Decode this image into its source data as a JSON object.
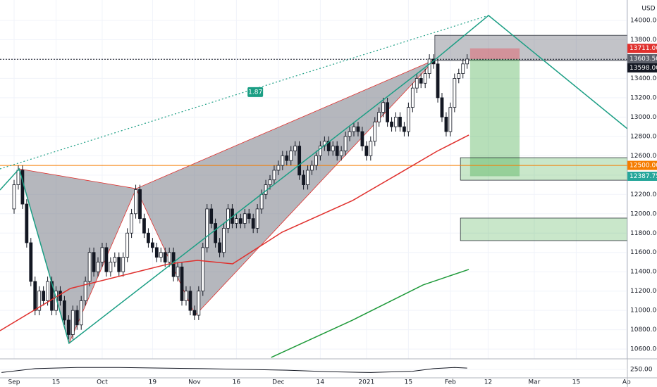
{
  "chart_data": {
    "type": "candlestick",
    "currency": "USD",
    "xlim": [
      -3.36,
      146.2
    ],
    "ylim": [
      10499,
      14211
    ],
    "xticks": [
      {
        "value": 0,
        "label": "Sep"
      },
      {
        "value": 10,
        "label": "15"
      },
      {
        "value": 21,
        "label": "Oct"
      },
      {
        "value": 33,
        "label": "19"
      },
      {
        "value": 43,
        "label": "Nov"
      },
      {
        "value": 53,
        "label": "16"
      },
      {
        "value": 63,
        "label": "Dec"
      },
      {
        "value": 73,
        "label": "14"
      },
      {
        "value": 84,
        "label": "2021"
      },
      {
        "value": 94,
        "label": "15"
      },
      {
        "value": 104,
        "label": "Feb"
      },
      {
        "value": 113,
        "label": "12"
      },
      {
        "value": 124,
        "label": "Mar"
      },
      {
        "value": 134,
        "label": "15"
      },
      {
        "value": 146,
        "label": "Ap"
      }
    ],
    "yticks": [
      {
        "value": 10600,
        "label": "10600.00"
      },
      {
        "value": 10800,
        "label": "10800.00"
      },
      {
        "value": 11000,
        "label": "11000.00"
      },
      {
        "value": 11200,
        "label": "11200.00"
      },
      {
        "value": 11400,
        "label": "11400.00"
      },
      {
        "value": 11600,
        "label": "11600.00"
      },
      {
        "value": 11800,
        "label": "11800.00"
      },
      {
        "value": 12000,
        "label": "12000.00"
      },
      {
        "value": 12200,
        "label": "12200.00"
      },
      {
        "value": 12400,
        "label": "12400.00"
      },
      {
        "value": 12600,
        "label": "12600.00"
      },
      {
        "value": 12800,
        "label": "12800.00"
      },
      {
        "value": 13000,
        "label": "13000.00"
      },
      {
        "value": 13200,
        "label": "13200.00"
      },
      {
        "value": 13400,
        "label": "13400.00"
      },
      {
        "value": 13600,
        "label": "13600.00"
      },
      {
        "value": 13800,
        "label": "13800.00"
      },
      {
        "value": 14000,
        "label": "14000.00"
      }
    ],
    "grid": true,
    "up_color": "#ffffff",
    "down_color": "#131722",
    "open": [
      12050,
      12300,
      12450,
      12100,
      11700,
      11300,
      11000,
      11200,
      11100,
      11300,
      11000,
      11200,
      11100,
      10900,
      10750,
      11000,
      10850,
      11100,
      11300,
      11600,
      11400,
      11500,
      11650,
      11400,
      11500,
      11550,
      11400,
      11550,
      11800,
      12000,
      12250,
      11950,
      11800,
      11700,
      11650,
      11550,
      11600,
      11500,
      11600,
      11350,
      11450,
      11100,
      11200,
      11000,
      10950,
      11200,
      11650,
      12050,
      11900,
      11700,
      11600,
      11850,
      12050,
      11900,
      11950,
      11900,
      12000,
      11950,
      11850,
      12050,
      12200,
      12300,
      12350,
      12450,
      12500,
      12600,
      12550,
      12650,
      12700,
      12400,
      12300,
      12450,
      12500,
      12600,
      12700,
      12750,
      12650,
      12700,
      12600,
      12650,
      12800,
      12850,
      12900,
      12850,
      12700,
      12600,
      12750,
      12950,
      13050,
      13150,
      12950,
      12900,
      13000,
      12900,
      12850,
      13100,
      13300,
      13400,
      13350,
      13450,
      13600,
      13550,
      13200,
      13000,
      12850,
      13100,
      13400,
      13450,
      13550
    ],
    "high": [
      12350,
      12500,
      12500,
      12150,
      11750,
      11350,
      11250,
      11250,
      11350,
      11350,
      11250,
      11250,
      11150,
      10950,
      11050,
      11050,
      11150,
      11350,
      11650,
      11650,
      11550,
      11700,
      11700,
      11550,
      11600,
      11600,
      11600,
      11850,
      12050,
      12300,
      12300,
      12000,
      11850,
      11750,
      11700,
      11650,
      11650,
      11650,
      11650,
      11500,
      11500,
      11250,
      11250,
      11050,
      11250,
      11700,
      12100,
      12100,
      11950,
      11750,
      11900,
      12100,
      12100,
      12000,
      12000,
      12050,
      12050,
      12000,
      12100,
      12250,
      12350,
      12400,
      12500,
      12550,
      12650,
      12650,
      12700,
      12750,
      12750,
      12450,
      12500,
      12550,
      12650,
      12750,
      12800,
      12800,
      12750,
      12750,
      12700,
      12850,
      12900,
      12950,
      12950,
      12900,
      12750,
      12800,
      13000,
      13100,
      13200,
      13200,
      13000,
      13050,
      13050,
      12950,
      13150,
      13350,
      13450,
      13450,
      13500,
      13650,
      13650,
      13600,
      13250,
      13050,
      13150,
      13450,
      13500,
      13600,
      13650
    ],
    "low": [
      12000,
      12250,
      12050,
      11650,
      11250,
      10950,
      10950,
      11050,
      11050,
      10950,
      10950,
      11050,
      10850,
      10700,
      10700,
      10800,
      10800,
      11050,
      11250,
      11350,
      11350,
      11450,
      11350,
      11350,
      11450,
      11350,
      11350,
      11500,
      11750,
      11950,
      11900,
      11750,
      11650,
      11600,
      11500,
      11500,
      11450,
      11450,
      11300,
      11300,
      11050,
      11050,
      10950,
      10900,
      10900,
      11150,
      11600,
      11850,
      11650,
      11550,
      11550,
      11800,
      11850,
      11850,
      11850,
      11850,
      11900,
      11800,
      11800,
      12000,
      12150,
      12250,
      12300,
      12400,
      12450,
      12500,
      12500,
      12600,
      12350,
      12250,
      12250,
      12400,
      12450,
      12550,
      12650,
      12600,
      12600,
      12550,
      12550,
      12600,
      12750,
      12800,
      12800,
      12650,
      12550,
      12550,
      12700,
      12900,
      13000,
      12900,
      12850,
      12850,
      12850,
      12800,
      12800,
      13050,
      13250,
      13300,
      13300,
      13400,
      13500,
      13150,
      12950,
      12800,
      12800,
      13050,
      13350,
      13400,
      13500
    ],
    "close": [
      12300,
      12450,
      12100,
      11700,
      11300,
      11000,
      11200,
      11100,
      11300,
      11000,
      11200,
      11100,
      10900,
      10750,
      11000,
      10850,
      11100,
      11300,
      11600,
      11400,
      11500,
      11650,
      11400,
      11500,
      11550,
      11400,
      11550,
      11800,
      12000,
      12250,
      11950,
      11800,
      11700,
      11650,
      11550,
      11600,
      11500,
      11600,
      11350,
      11450,
      11100,
      11200,
      11000,
      10950,
      11200,
      11650,
      12050,
      11900,
      11700,
      11600,
      11850,
      12050,
      11900,
      11950,
      11900,
      12000,
      11950,
      11850,
      12050,
      12200,
      12300,
      12350,
      12450,
      12500,
      12600,
      12550,
      12650,
      12700,
      12400,
      12300,
      12450,
      12500,
      12600,
      12700,
      12750,
      12650,
      12700,
      12600,
      12650,
      12800,
      12850,
      12900,
      12850,
      12700,
      12600,
      12750,
      12950,
      13050,
      13150,
      12950,
      12900,
      13000,
      12900,
      12850,
      13100,
      13300,
      13400,
      13350,
      13450,
      13600,
      13550,
      13200,
      13000,
      12850,
      13100,
      13400,
      13450,
      13550,
      13600
    ],
    "series": [
      {
        "color": "#e0302d",
        "x": [
          -3.36,
          13.4,
          30.3,
          37,
          43.7,
          52.1,
          63.9,
          80.7,
          90.8,
          100.8,
          108.4
        ],
        "values": [
          10790,
          11227,
          11410,
          11482,
          11518,
          11482,
          11810,
          12137,
          12392,
          12646,
          12814
        ]
      },
      {
        "color": "#1f9a3a",
        "x": [
          61.3,
          80.7,
          97.5,
          108.4
        ],
        "values": [
          10514,
          10900,
          11264,
          11424
        ]
      }
    ],
    "patterns": [
      {
        "points": [
          [
            1.2,
            12464
          ],
          [
            13.1,
            10660
          ],
          [
            29.1,
            12260
          ]
        ]
      },
      {
        "points": [
          [
            29.1,
            12260
          ],
          [
            43.2,
            10950
          ],
          [
            100.3,
            13592
          ]
        ]
      }
    ],
    "green_lines": [
      {
        "points": [
          [
            -3.36,
            12246
          ],
          [
            1.2,
            12464
          ],
          [
            13.1,
            10660
          ],
          [
            100.3,
            13592
          ],
          [
            113.1,
            14051
          ],
          [
            146.2,
            12879
          ]
        ]
      }
    ],
    "dotted_line": {
      "points": [
        [
          -3.36,
          12464
        ],
        [
          113.1,
          14051
        ]
      ],
      "label": "1.87",
      "label_at": [
        57.5,
        13258
      ]
    },
    "zones": [
      {
        "x": [
          100.3,
          146.2
        ],
        "y": [
          13585,
          13846
        ],
        "fill": "rgba(120,123,134,0.45)",
        "stroke": "#131722"
      },
      {
        "x": [
          108.7,
          120.5
        ],
        "y": [
          13598,
          13711
        ],
        "fill": "rgba(242,54,69,0.35)",
        "stroke": "none"
      },
      {
        "x": [
          108.7,
          120.5
        ],
        "y": [
          12388,
          13598
        ],
        "fill": "rgba(76,175,80,0.4)",
        "stroke": "none"
      },
      {
        "x": [
          106.4,
          146.2
        ],
        "y": [
          12347,
          12580
        ],
        "fill": "rgba(76,175,80,0.3)",
        "stroke": "#131722"
      },
      {
        "x": [
          106.4,
          146.2
        ],
        "y": [
          11722,
          11955
        ],
        "fill": "rgba(76,175,80,0.3)",
        "stroke": "#131722"
      }
    ],
    "hlines": [
      {
        "value": 12500,
        "color": "#f57c00",
        "dash": "none"
      },
      {
        "value": 13598,
        "color": "#131722",
        "dash": "2,2"
      }
    ],
    "price_tags": [
      {
        "value": 13711,
        "label": "13711.00",
        "color": "#e0302d"
      },
      {
        "value": 13603.5,
        "label": "13603.50",
        "color": "#5d606b"
      },
      {
        "value": 13598,
        "label": "13598.00",
        "color": "#131722"
      },
      {
        "value": 12500,
        "label": "12500.00",
        "color": "#f57c00"
      },
      {
        "value": 12387.75,
        "label": "12387.75",
        "color": "#26a69a"
      }
    ],
    "indicator": {
      "ylim": [
        196,
        317
      ],
      "yticks": [
        {
          "value": 250,
          "label": "250.00"
        }
      ],
      "x": [
        -3,
        5,
        15,
        25,
        35,
        45,
        55,
        65,
        75,
        85,
        95,
        100,
        105,
        108
      ],
      "values": [
        230,
        255,
        262,
        262,
        258,
        255,
        250,
        245,
        235,
        230,
        238,
        255,
        262,
        258
      ]
    }
  }
}
